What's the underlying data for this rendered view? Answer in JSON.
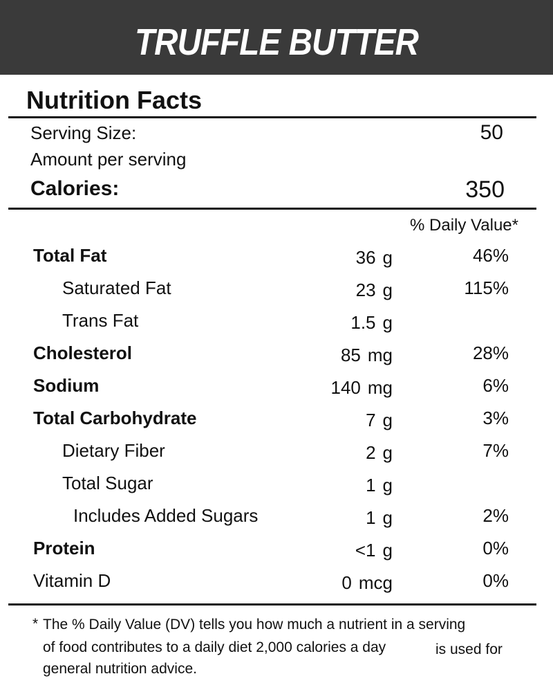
{
  "header": {
    "title": "TRUFFLE BUTTER"
  },
  "label": {
    "heading": "Nutrition Facts",
    "serving_size": {
      "label": "Serving Size:",
      "value": "50"
    },
    "amount_per_serving": "Amount per serving",
    "calories": {
      "label": "Calories:",
      "value": "350"
    },
    "daily_value_heading": "% Daily Value*",
    "rows": [
      {
        "name": "Total Fat",
        "amount": "36",
        "unit": "g",
        "dv": "46%"
      },
      {
        "name": "Saturated Fat",
        "amount": "23",
        "unit": "g",
        "dv": "115%"
      },
      {
        "name": "Trans Fat",
        "amount": "1.5",
        "unit": "g"
      },
      {
        "name": "Cholesterol",
        "amount": "85",
        "unit": "mg",
        "dv": "28%"
      },
      {
        "name": "Sodium",
        "amount": "140",
        "unit": "mg",
        "dv": "6%"
      },
      {
        "name": "Total Carbohydrate",
        "amount": "7",
        "unit": "g",
        "dv": "3%"
      },
      {
        "name": "Dietary Fiber",
        "amount": "2",
        "unit": "g",
        "dv": "7%"
      },
      {
        "name": "Total Sugar",
        "amount": "1",
        "unit": "g"
      },
      {
        "name": "Includes Added Sugars",
        "amount": "1",
        "unit": "g",
        "dv": "2%"
      },
      {
        "name": "Protein",
        "amount": "<1",
        "unit": "g",
        "dv": "0%"
      },
      {
        "name": "Vitamin D",
        "amount": "0",
        "unit": "mcg",
        "dv": "0%"
      }
    ],
    "footnote": {
      "marker": "*",
      "lines": [
        "The % Daily Value (DV) tells you how much a nutrient in a serving",
        "of food contributes to a daily diet 2,000 calories a day",
        "is used for",
        "general nutrition advice."
      ]
    }
  }
}
